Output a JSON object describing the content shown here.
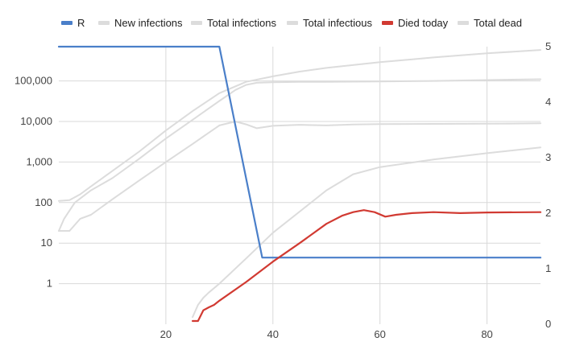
{
  "chart_data": {
    "type": "line",
    "xlim": [
      0,
      90
    ],
    "x_ticks": [
      20,
      40,
      60,
      80
    ],
    "x_tick_labels": [
      "20",
      "40",
      "60",
      "80"
    ],
    "left_axis": {
      "scale": "log",
      "ylim": [
        0.1,
        700000
      ],
      "ticks": [
        1,
        10,
        100,
        1000,
        10000,
        100000
      ],
      "tick_labels": [
        "1",
        "10",
        "100",
        "1,000",
        "10,000",
        "100,000"
      ]
    },
    "right_axis": {
      "scale": "linear",
      "ylim": [
        0,
        5
      ],
      "ticks": [
        0,
        1,
        2,
        3,
        4,
        5
      ],
      "tick_labels": [
        "0",
        "1",
        "2",
        "3",
        "4",
        "5"
      ]
    },
    "grid": true,
    "legend_position": "top",
    "series": [
      {
        "name": "R",
        "axis": "right",
        "color": "#4a7fc9",
        "x": [
          0,
          30,
          38,
          90
        ],
        "y": [
          5,
          5,
          1.2,
          1.2
        ]
      },
      {
        "name": "New infections",
        "axis": "left",
        "color": "#dcdcdc",
        "x": [
          0,
          2,
          4,
          6,
          10,
          15,
          20,
          25,
          30,
          33,
          35,
          37,
          40,
          45,
          50,
          55,
          60,
          70,
          80,
          90
        ],
        "y": [
          20,
          20,
          40,
          50,
          120,
          350,
          1000,
          2800,
          8000,
          10000,
          8500,
          6800,
          7800,
          8300,
          8000,
          8400,
          8600,
          8700,
          8800,
          9000
        ]
      },
      {
        "name": "Total infections",
        "axis": "left",
        "color": "#dcdcdc",
        "x": [
          0,
          2,
          4,
          6,
          10,
          15,
          20,
          25,
          30,
          35,
          40,
          45,
          50,
          60,
          70,
          80,
          90
        ],
        "y": [
          110,
          115,
          160,
          250,
          600,
          1800,
          6000,
          18000,
          50000,
          95000,
          130000,
          170000,
          210000,
          290000,
          380000,
          480000,
          580000
        ]
      },
      {
        "name": "Total infectious",
        "axis": "left",
        "color": "#dcdcdc",
        "x": [
          0,
          1,
          3,
          6,
          10,
          15,
          20,
          25,
          30,
          33,
          35,
          37,
          40,
          45,
          50,
          60,
          70,
          80,
          90
        ],
        "y": [
          20,
          40,
          100,
          200,
          400,
          1200,
          3800,
          11000,
          32000,
          60000,
          80000,
          90000,
          93000,
          95000,
          95000,
          97000,
          100000,
          105000,
          110000
        ]
      },
      {
        "name": "Died today",
        "axis": "left",
        "color": "#d13a32",
        "x": [
          25,
          26,
          27,
          28,
          29,
          30,
          35,
          40,
          45,
          50,
          53,
          55,
          57,
          59,
          61,
          63,
          66,
          70,
          75,
          80,
          90
        ],
        "y": [
          0.12,
          0.12,
          0.22,
          0.26,
          0.3,
          0.38,
          1.1,
          3.5,
          10,
          30,
          48,
          58,
          65,
          58,
          45,
          50,
          55,
          58,
          55,
          57,
          58
        ]
      },
      {
        "name": "Total dead",
        "axis": "left",
        "color": "#dcdcdc",
        "x": [
          25,
          26,
          27,
          28,
          30,
          35,
          40,
          45,
          50,
          55,
          60,
          70,
          80,
          90
        ],
        "y": [
          0.15,
          0.3,
          0.45,
          0.6,
          1.0,
          4.2,
          18,
          60,
          200,
          500,
          750,
          1150,
          1650,
          2300
        ]
      }
    ]
  }
}
